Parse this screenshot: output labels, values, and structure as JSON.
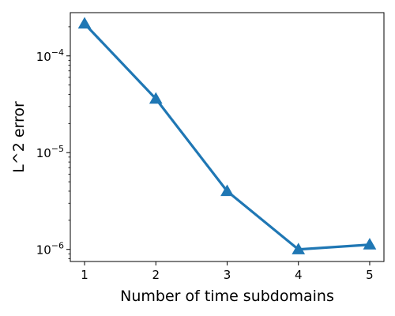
{
  "chart_data": {
    "type": "line",
    "title": "",
    "xlabel": "Number of time subdomains",
    "ylabel": "L^2 error",
    "x": [
      1,
      2,
      3,
      4,
      5
    ],
    "series": [
      {
        "values": [
          0.000215,
          3.6e-05,
          4e-06,
          1e-06,
          1.12e-06
        ],
        "color": "#1f77b4",
        "marker": "triangle-up"
      }
    ],
    "xlim": [
      0.8,
      5.2
    ],
    "ylim": [
      7.5e-07,
      0.00028
    ],
    "yscale": "log",
    "xticks": [
      "1",
      "2",
      "3",
      "4",
      "5"
    ],
    "yticks": [
      {
        "value": 1e-06,
        "base": "10",
        "exp": "−6"
      },
      {
        "value": 1e-05,
        "base": "10",
        "exp": "−5"
      },
      {
        "value": 0.0001,
        "base": "10",
        "exp": "−4"
      }
    ],
    "grid": false,
    "legend": "none"
  }
}
